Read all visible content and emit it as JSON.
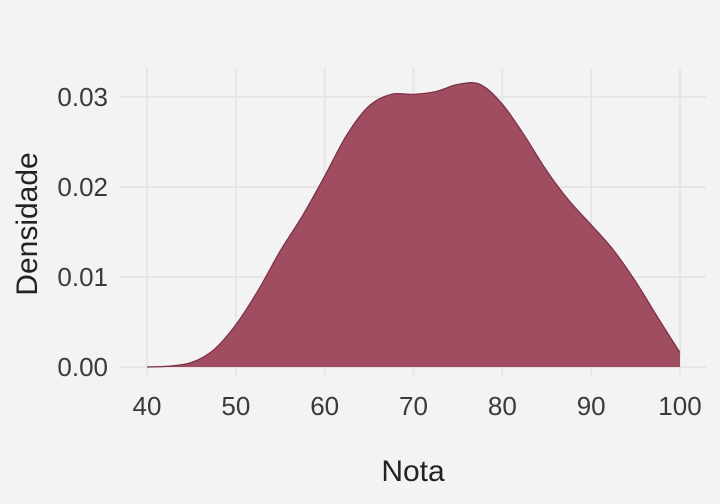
{
  "chart_data": {
    "type": "area",
    "title": "",
    "xlabel": "Nota",
    "ylabel": "Densidade",
    "xlim": [
      40,
      100
    ],
    "ylim": [
      0,
      0.03
    ],
    "x_ticks": [
      40,
      50,
      60,
      70,
      80,
      90,
      100
    ],
    "x_tick_labels": [
      "40",
      "50",
      "60",
      "70",
      "80",
      "90",
      "100"
    ],
    "y_ticks": [
      0,
      0.01,
      0.02,
      0.03
    ],
    "y_tick_labels": [
      "0.00",
      "0.01",
      "0.02",
      "0.03"
    ],
    "grid": true,
    "fill_color": "#9b4258",
    "line_color": "#7a2f45",
    "background_color": "#f3f3f3",
    "series": [
      {
        "x": [
          40,
          42.5,
          45,
          47.5,
          50,
          52.5,
          55,
          57.5,
          60,
          62.5,
          65,
          67.5,
          70,
          72.5,
          75,
          77.5,
          80,
          82.5,
          85,
          87.5,
          90,
          92.5,
          95,
          97.5,
          100
        ],
        "y": [
          0.0,
          0.0001,
          0.0005,
          0.0019,
          0.0047,
          0.0085,
          0.0129,
          0.0168,
          0.0212,
          0.0258,
          0.029,
          0.0303,
          0.0303,
          0.0306,
          0.0314,
          0.0314,
          0.0292,
          0.0257,
          0.0218,
          0.0185,
          0.0158,
          0.013,
          0.0095,
          0.0055,
          0.0016
        ]
      }
    ]
  }
}
